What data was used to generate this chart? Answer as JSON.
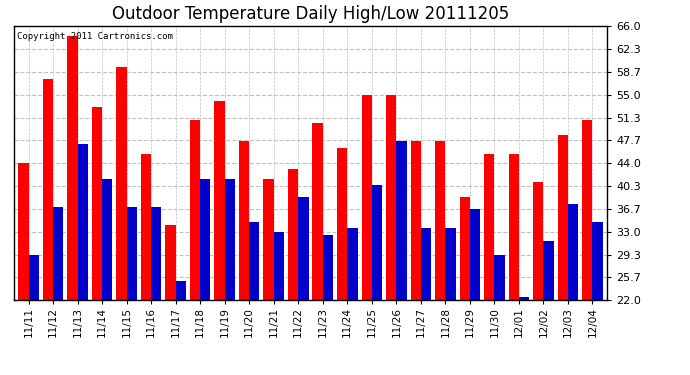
{
  "title": "Outdoor Temperature Daily High/Low 20111205",
  "copyright_text": "Copyright 2011 Cartronics.com",
  "dates": [
    "11/11",
    "11/12",
    "11/13",
    "11/14",
    "11/15",
    "11/16",
    "11/17",
    "11/18",
    "11/19",
    "11/20",
    "11/21",
    "11/22",
    "11/23",
    "11/24",
    "11/25",
    "11/26",
    "11/27",
    "11/28",
    "11/29",
    "11/30",
    "12/01",
    "12/02",
    "12/03",
    "12/04"
  ],
  "highs": [
    44.0,
    57.5,
    64.5,
    53.0,
    59.5,
    45.5,
    34.0,
    51.0,
    54.0,
    47.5,
    41.5,
    43.0,
    50.5,
    46.5,
    55.0,
    55.0,
    47.5,
    47.5,
    38.5,
    45.5,
    45.5,
    41.0,
    48.5,
    51.0
  ],
  "lows": [
    29.3,
    37.0,
    47.0,
    41.5,
    37.0,
    37.0,
    25.0,
    41.5,
    41.5,
    34.5,
    33.0,
    38.5,
    32.5,
    33.5,
    40.5,
    47.5,
    33.5,
    33.5,
    36.7,
    29.3,
    22.5,
    31.5,
    37.5,
    34.5
  ],
  "high_color": "#ff0000",
  "low_color": "#0000cc",
  "bg_color": "#ffffff",
  "grid_color": "#c0c0c0",
  "title_fontsize": 12,
  "yticks": [
    22.0,
    25.7,
    29.3,
    33.0,
    36.7,
    40.3,
    44.0,
    47.7,
    51.3,
    55.0,
    58.7,
    62.3,
    66.0
  ],
  "ymin": 22.0,
  "ymax": 66.0,
  "bar_bottom": 22.0
}
